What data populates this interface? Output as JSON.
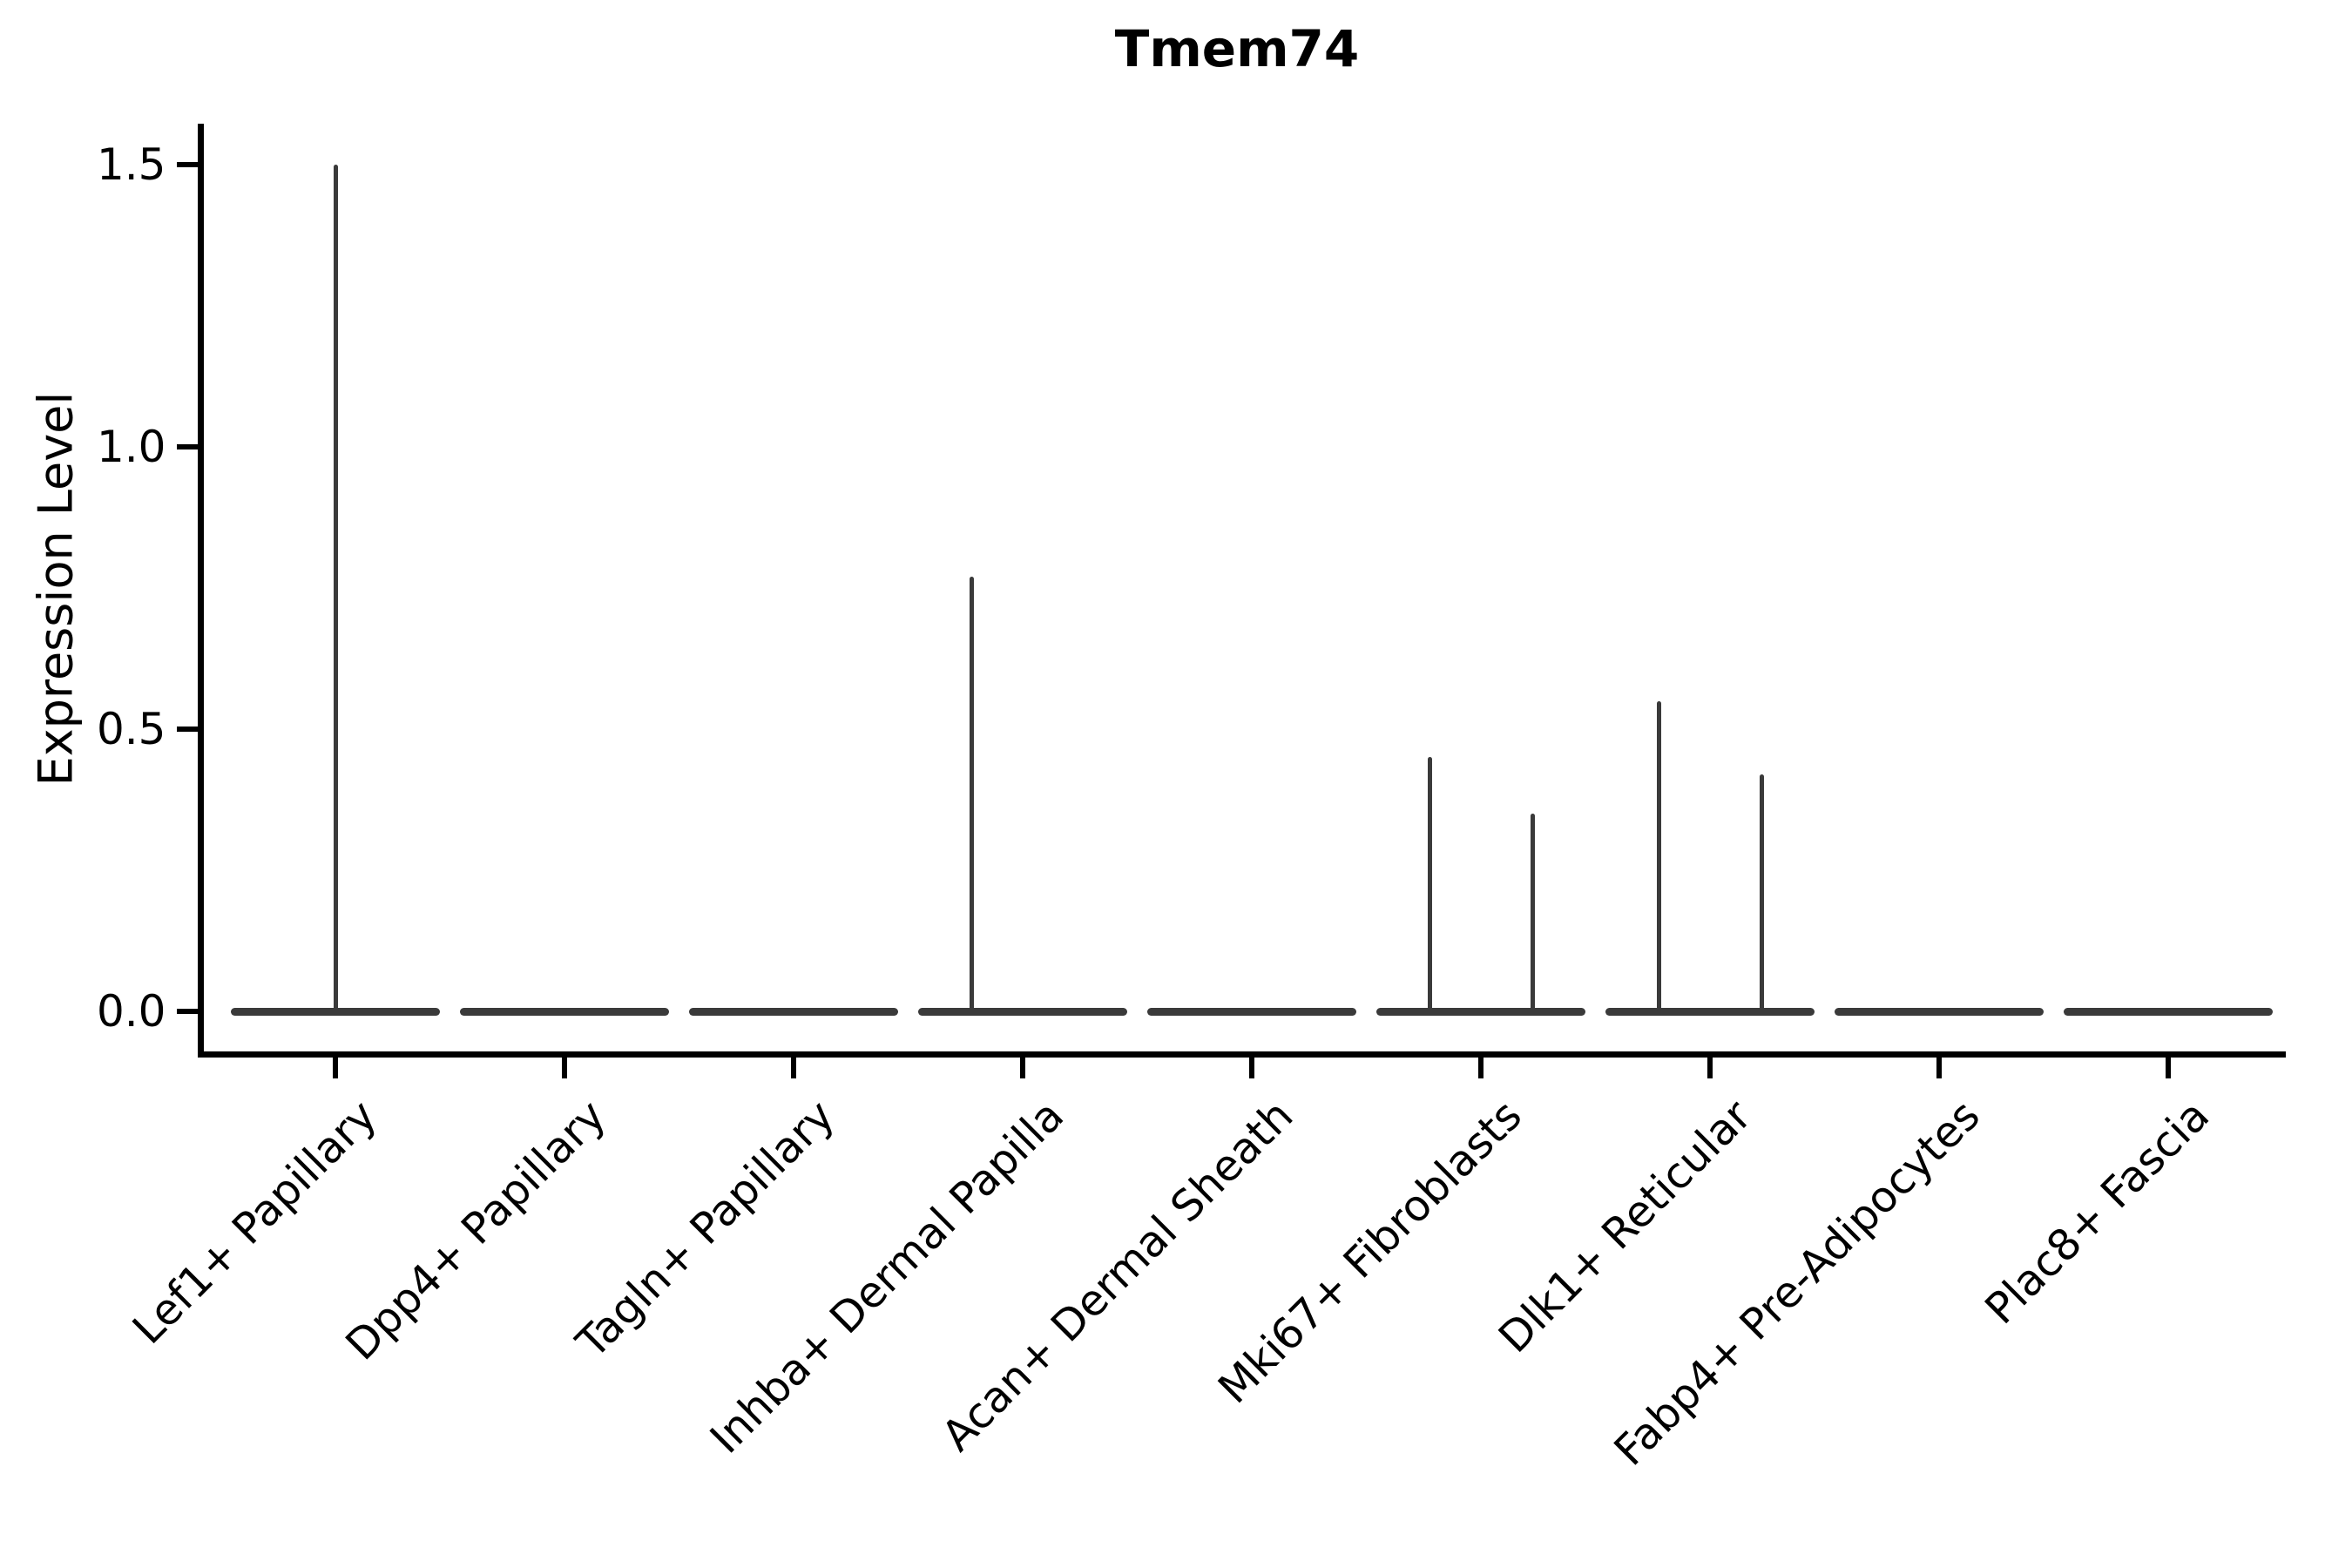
{
  "chart_data": {
    "type": "violin",
    "title": "Tmem74",
    "ylabel": "Expression Level",
    "xlabel": "",
    "ylim": [
      -0.075,
      1.57
    ],
    "yticks": [
      0.0,
      0.5,
      1.0,
      1.5
    ],
    "ytick_labels": [
      "0.0",
      "0.5",
      "1.0",
      "1.5"
    ],
    "grid": false,
    "legend": null,
    "colors": {
      "violin": "#3a3a3a",
      "axis": "#000000",
      "text": "#000000",
      "background": "#ffffff"
    },
    "categories": [
      "Lef1+ Papillary",
      "Dpp4+ Papillary",
      "Tagln+ Papillary",
      "Inhba+ Dermal Papilla",
      "Acan+ Dermal Sheath",
      "Mki67+ Fibroblasts",
      "Dlk1+ Reticular",
      "Fabp4+ Pre-Adipocytes",
      "Plac8+ Fascia"
    ],
    "violins": [
      {
        "category": "Lef1+ Papillary",
        "baseline_value": 0.0,
        "spikes": [
          {
            "side": "center",
            "max_expression": 1.5
          }
        ]
      },
      {
        "category": "Dpp4+ Papillary",
        "baseline_value": 0.0,
        "spikes": []
      },
      {
        "category": "Tagln+ Papillary",
        "baseline_value": 0.0,
        "spikes": []
      },
      {
        "category": "Inhba+ Dermal Papilla",
        "baseline_value": 0.0,
        "spikes": [
          {
            "side": "left",
            "max_expression": 0.77
          }
        ]
      },
      {
        "category": "Acan+ Dermal Sheath",
        "baseline_value": 0.0,
        "spikes": []
      },
      {
        "category": "Mki67+ Fibroblasts",
        "baseline_value": 0.0,
        "spikes": [
          {
            "side": "left",
            "max_expression": 0.45
          },
          {
            "side": "right",
            "max_expression": 0.35
          }
        ]
      },
      {
        "category": "Dlk1+ Reticular",
        "baseline_value": 0.0,
        "spikes": [
          {
            "side": "left",
            "max_expression": 0.55
          },
          {
            "side": "right",
            "max_expression": 0.42
          }
        ]
      },
      {
        "category": "Fabp4+ Pre-Adipocytes",
        "baseline_value": 0.0,
        "spikes": []
      },
      {
        "category": "Plac8+ Fascia",
        "baseline_value": 0.0,
        "spikes": []
      }
    ]
  }
}
